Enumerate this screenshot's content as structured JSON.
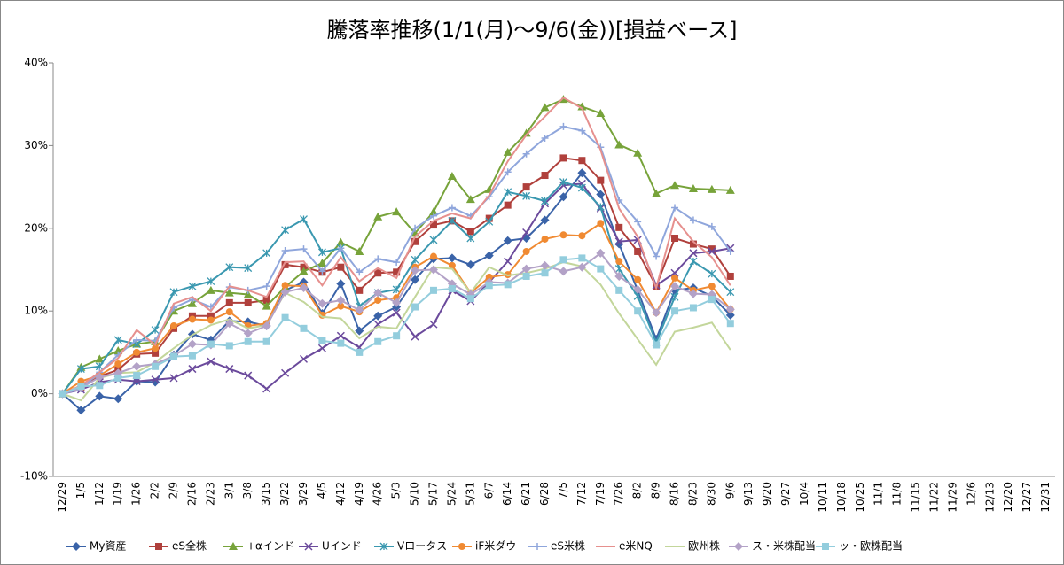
{
  "chart_data": {
    "type": "line",
    "title": "騰落率推移(1/1(月)～9/6(金))[損益ベース]",
    "categories": [
      "12/29",
      "1/5",
      "1/12",
      "1/19",
      "1/26",
      "2/2",
      "2/9",
      "2/16",
      "2/23",
      "3/1",
      "3/8",
      "3/15",
      "3/22",
      "3/29",
      "4/5",
      "4/12",
      "4/19",
      "4/26",
      "5/3",
      "5/10",
      "5/17",
      "5/24",
      "5/31",
      "6/7",
      "6/14",
      "6/21",
      "6/28",
      "7/5",
      "7/12",
      "7/19",
      "7/26",
      "8/2",
      "8/9",
      "8/16",
      "8/23",
      "8/30",
      "9/6",
      "9/13",
      "9/20",
      "9/27",
      "10/4",
      "10/11",
      "10/18",
      "10/25",
      "11/1",
      "11/8",
      "11/15",
      "11/22",
      "11/29",
      "12/6",
      "12/13",
      "12/20",
      "12/27",
      "12/31"
    ],
    "ylim": [
      -10,
      40
    ],
    "yticks": [
      {
        "value": -10,
        "label": "-10%"
      },
      {
        "value": 0,
        "label": "0%"
      },
      {
        "value": 10,
        "label": "10%"
      },
      {
        "value": 20,
        "label": "20%"
      },
      {
        "value": 30,
        "label": "30%"
      },
      {
        "value": 40,
        "label": "40%"
      }
    ],
    "grid": false,
    "legend": "bottom",
    "series": [
      {
        "name": "My資産",
        "color": "#3a63a8",
        "marker": "diamond",
        "values": [
          0,
          -2,
          -0.3,
          -0.6,
          1.5,
          1.4,
          4.7,
          7.2,
          6.5,
          8.8,
          8.7,
          8.2,
          12.5,
          13.5,
          9.7,
          13.3,
          7.6,
          9.4,
          10.5,
          13.8,
          16.3,
          16.4,
          15.6,
          16.7,
          18.5,
          18.8,
          21.0,
          23.8,
          26.7,
          24.1,
          18.1,
          12.5,
          6.6,
          12.5,
          12.8,
          11.8,
          9.5,
          null,
          null,
          null,
          null,
          null,
          null,
          null,
          null,
          null,
          null,
          null,
          null,
          null,
          null,
          null,
          null,
          null
        ]
      },
      {
        "name": "eS全株",
        "color": "#b0403c",
        "marker": "square",
        "values": [
          0,
          0.8,
          2.1,
          2.9,
          4.8,
          4.9,
          7.9,
          9.4,
          9.4,
          11.0,
          11.0,
          11.3,
          15.6,
          15.3,
          14.7,
          15.3,
          12.5,
          14.6,
          14.7,
          18.4,
          20.4,
          20.9,
          19.6,
          21.2,
          22.8,
          25.0,
          26.4,
          28.5,
          28.2,
          25.8,
          20.1,
          17.2,
          13.0,
          18.8,
          18.1,
          17.5,
          14.2,
          null,
          null,
          null,
          null,
          null,
          null,
          null,
          null,
          null,
          null,
          null,
          null,
          null,
          null,
          null,
          null,
          null
        ]
      },
      {
        "name": "+αインド",
        "color": "#77a33a",
        "marker": "triangle",
        "values": [
          0,
          3.2,
          4.2,
          5.2,
          6.0,
          6.3,
          10.0,
          10.9,
          12.5,
          12.2,
          12.0,
          10.6,
          12.9,
          14.8,
          15.8,
          18.3,
          17.2,
          21.4,
          22.0,
          19.4,
          22.0,
          26.3,
          23.5,
          24.7,
          29.2,
          31.5,
          34.6,
          35.6,
          34.7,
          33.9,
          30.1,
          29.1,
          24.2,
          25.2,
          24.8,
          24.7,
          24.6,
          null,
          null,
          null,
          null,
          null,
          null,
          null,
          null,
          null,
          null,
          null,
          null,
          null,
          null,
          null,
          null,
          null
        ]
      },
      {
        "name": "Uインド",
        "color": "#6b4a9c",
        "marker": "x",
        "values": [
          0,
          0.5,
          1.4,
          1.7,
          1.5,
          1.7,
          1.9,
          3.0,
          3.9,
          3.0,
          2.2,
          0.6,
          2.5,
          4.2,
          5.5,
          7.0,
          5.6,
          8.4,
          9.8,
          6.9,
          8.4,
          12.5,
          11.2,
          13.5,
          16.0,
          19.5,
          23.0,
          25.2,
          25.4,
          22.4,
          18.4,
          18.6,
          13.1,
          14.6,
          17.0,
          17.2,
          17.6,
          null,
          null,
          null,
          null,
          null,
          null,
          null,
          null,
          null,
          null,
          null,
          null,
          null,
          null,
          null,
          null,
          null
        ]
      },
      {
        "name": "Vロータス",
        "color": "#3a98b0",
        "marker": "star",
        "values": [
          0,
          3.0,
          3.3,
          6.5,
          6.0,
          7.7,
          12.3,
          13.0,
          13.6,
          15.3,
          15.2,
          17.0,
          19.8,
          21.1,
          17.1,
          17.6,
          10.6,
          12.2,
          12.6,
          16.2,
          18.6,
          20.9,
          18.8,
          20.8,
          24.4,
          23.9,
          23.3,
          25.6,
          24.9,
          22.6,
          15.1,
          11.8,
          6.2,
          11.7,
          16.0,
          14.5,
          12.3,
          null,
          null,
          null,
          null,
          null,
          null,
          null,
          null,
          null,
          null,
          null,
          null,
          null,
          null,
          null,
          null,
          null
        ]
      },
      {
        "name": "iF米ダウ",
        "color": "#f08a32",
        "marker": "circle",
        "values": [
          0,
          1.5,
          2.2,
          3.6,
          5.0,
          5.5,
          8.2,
          9.0,
          8.9,
          9.9,
          8.2,
          8.5,
          13.1,
          13.0,
          9.5,
          10.6,
          9.9,
          11.3,
          11.6,
          15.3,
          16.6,
          15.5,
          12.2,
          14.1,
          14.4,
          17.2,
          18.7,
          19.2,
          19.1,
          20.6,
          16.0,
          13.8,
          9.8,
          14.0,
          12.5,
          13.0,
          10.2,
          null,
          null,
          null,
          null,
          null,
          null,
          null,
          null,
          null,
          null,
          null,
          null,
          null,
          null,
          null,
          null,
          null
        ]
      },
      {
        "name": "eS米株",
        "color": "#8fa6dc",
        "marker": "plus",
        "values": [
          0,
          0.6,
          2.6,
          4.7,
          6.5,
          6.4,
          10.4,
          11.4,
          10.5,
          12.9,
          12.5,
          13.0,
          17.3,
          17.5,
          14.8,
          17.6,
          14.7,
          16.3,
          15.9,
          20.0,
          21.5,
          22.5,
          21.5,
          23.8,
          26.8,
          29.0,
          30.9,
          32.3,
          31.8,
          29.8,
          23.4,
          20.8,
          16.6,
          22.5,
          21.0,
          20.2,
          17.2,
          null,
          null,
          null,
          null,
          null,
          null,
          null,
          null,
          null,
          null,
          null,
          null,
          null,
          null,
          null,
          null,
          null
        ]
      },
      {
        "name": "e米NQ",
        "color": "#e6908e",
        "marker": "none",
        "values": [
          0,
          1.0,
          2.6,
          4.3,
          7.7,
          5.9,
          10.9,
          11.7,
          10.0,
          13.0,
          12.5,
          11.7,
          15.9,
          16.0,
          13.1,
          16.5,
          13.6,
          15.2,
          14.0,
          19.0,
          20.9,
          21.8,
          21.2,
          24.0,
          28.1,
          31.3,
          33.5,
          35.8,
          34.5,
          29.5,
          22.4,
          19.0,
          12.8,
          21.2,
          18.4,
          16.5,
          13.1,
          null,
          null,
          null,
          null,
          null,
          null,
          null,
          null,
          null,
          null,
          null,
          null,
          null,
          null,
          null,
          null,
          null
        ]
      },
      {
        "name": "欧州株",
        "color": "#c3d69b",
        "marker": "none",
        "values": [
          0,
          -0.8,
          1.9,
          2.5,
          2.6,
          3.8,
          5.5,
          7.1,
          8.3,
          9.0,
          7.9,
          8.3,
          12.2,
          11.1,
          9.3,
          9.1,
          6.7,
          8.1,
          7.9,
          11.7,
          15.3,
          15.1,
          12.2,
          15.3,
          14.3,
          14.6,
          15.1,
          15.9,
          15.4,
          13.2,
          9.7,
          6.6,
          3.5,
          7.5,
          8.0,
          8.6,
          5.3,
          null,
          null,
          null,
          null,
          null,
          null,
          null,
          null,
          null,
          null,
          null,
          null,
          null,
          null,
          null,
          null,
          null
        ]
      },
      {
        "name": "ス・米株配当",
        "color": "#b3a2c7",
        "marker": "diamond",
        "values": [
          0,
          0.7,
          2.0,
          2.5,
          3.3,
          3.6,
          4.6,
          6.0,
          5.9,
          8.5,
          7.3,
          8.2,
          12.3,
          12.8,
          10.9,
          11.3,
          10.1,
          12.2,
          11.0,
          14.9,
          15.0,
          13.3,
          12.0,
          13.5,
          13.4,
          15.1,
          15.5,
          14.8,
          15.3,
          17.0,
          14.2,
          12.6,
          9.8,
          13.0,
          12.1,
          12.0,
          10.2,
          null,
          null,
          null,
          null,
          null,
          null,
          null,
          null,
          null,
          null,
          null,
          null,
          null,
          null,
          null,
          null,
          null
        ]
      },
      {
        "name": "ッ・欧株配当",
        "color": "#93cddd",
        "marker": "square",
        "values": [
          0,
          0.9,
          1.0,
          1.9,
          2.2,
          3.3,
          4.5,
          4.6,
          6.0,
          5.8,
          6.3,
          6.3,
          9.2,
          7.9,
          6.4,
          6.1,
          5.0,
          6.3,
          7.0,
          10.5,
          12.5,
          12.7,
          11.5,
          13.1,
          13.2,
          14.2,
          14.6,
          16.2,
          16.4,
          15.1,
          12.5,
          10.0,
          5.9,
          10.0,
          10.4,
          11.4,
          8.5,
          null,
          null,
          null,
          null,
          null,
          null,
          null,
          null,
          null,
          null,
          null,
          null,
          null,
          null,
          null,
          null,
          null
        ]
      }
    ]
  }
}
